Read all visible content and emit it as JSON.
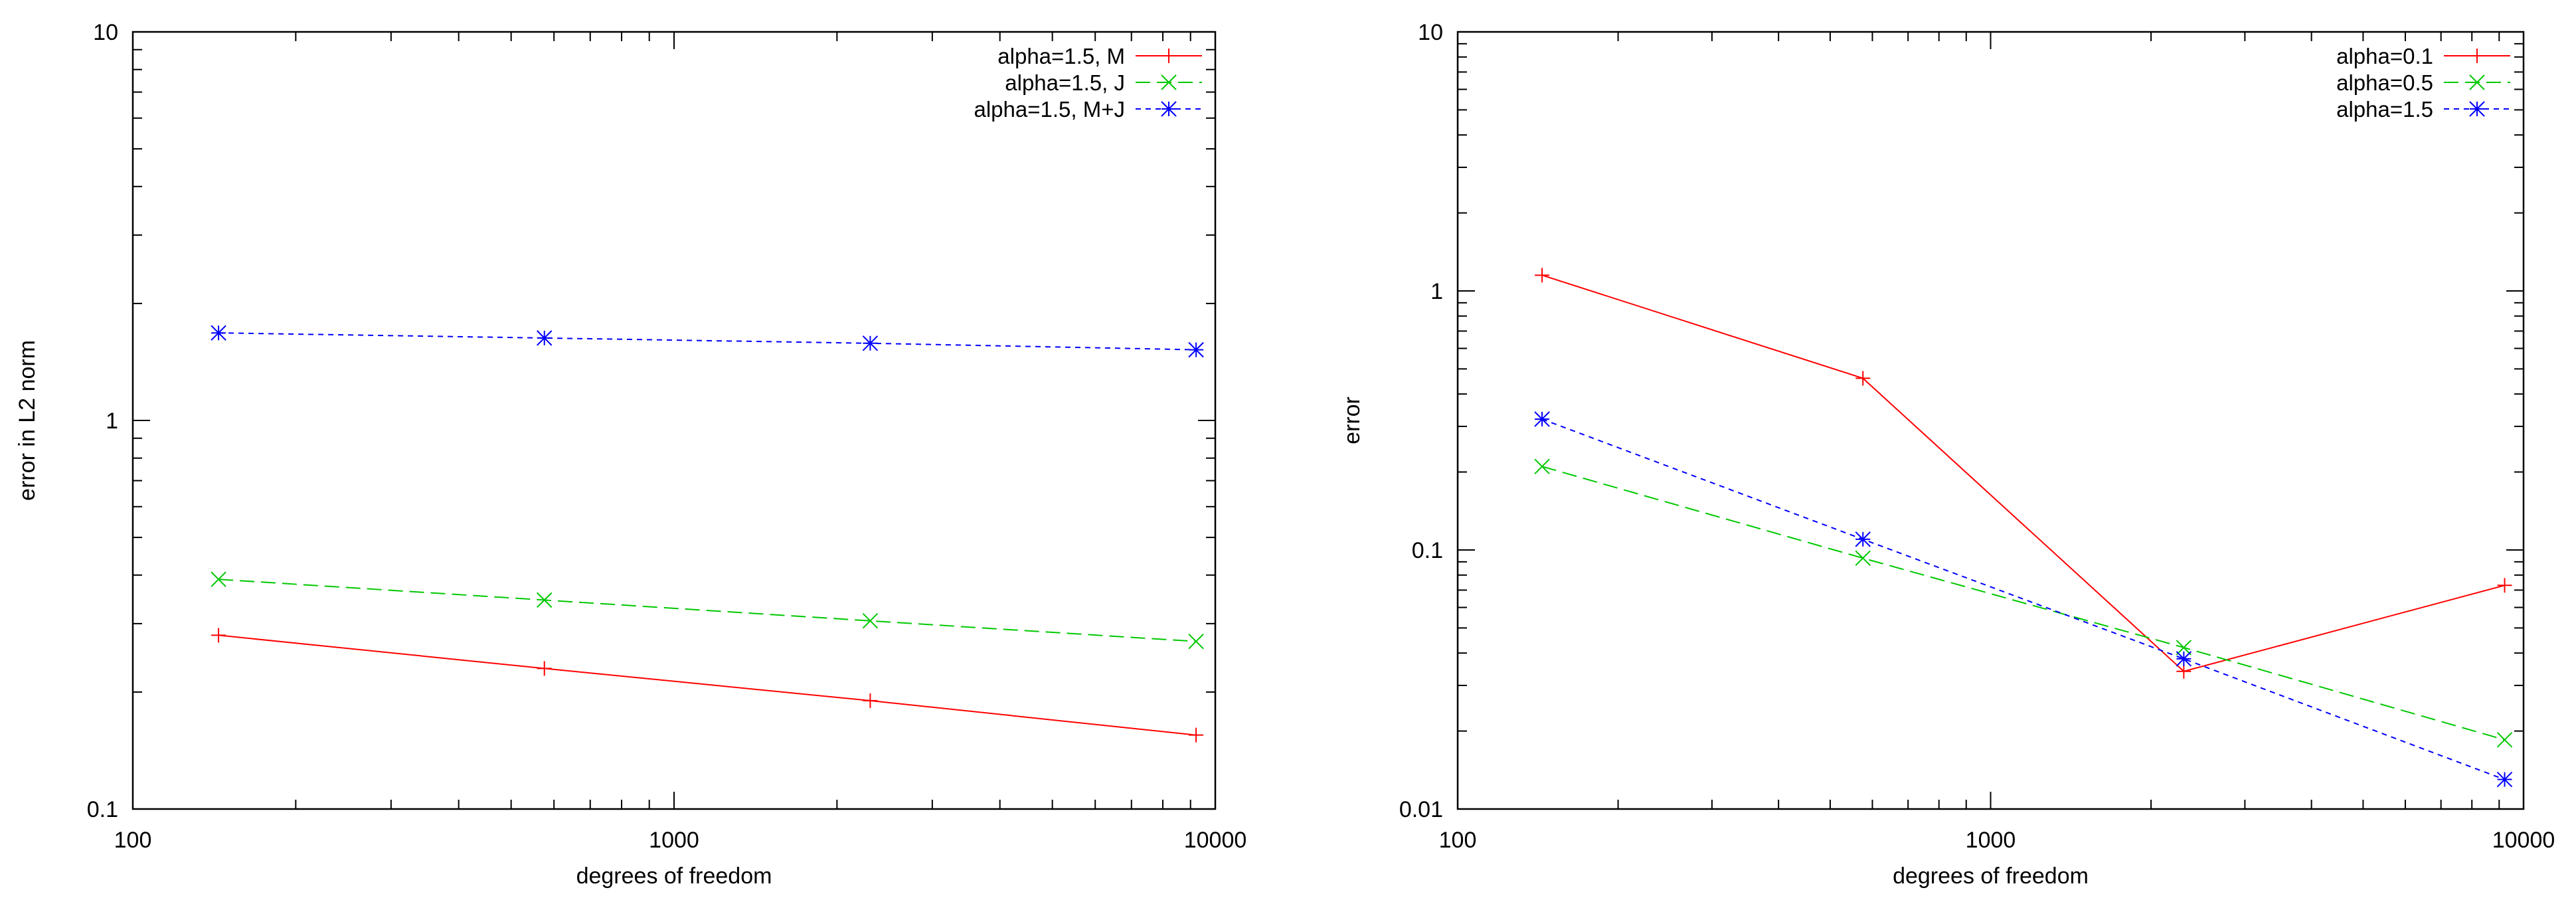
{
  "chart_data": [
    {
      "type": "line",
      "xscale": "log",
      "yscale": "log",
      "xlim": [
        100,
        10000
      ],
      "ylim": [
        0.1,
        10
      ],
      "xlabel": "degrees of freedom",
      "ylabel": "error in L2 norm",
      "xticks": [
        "100",
        "1000",
        "10000"
      ],
      "yticks": [
        "0.1",
        "1",
        "10"
      ],
      "legend_position": "top-right",
      "series": [
        {
          "name": "alpha=1.5, M",
          "color": "#ff0000",
          "marker": "plus",
          "dash": "solid",
          "x": [
            144,
            576,
            2304,
            9216
          ],
          "y": [
            0.28,
            0.23,
            0.19,
            0.155
          ]
        },
        {
          "name": "alpha=1.5, J",
          "color": "#00c800",
          "marker": "cross",
          "dash": "dashed",
          "x": [
            144,
            576,
            2304,
            9216
          ],
          "y": [
            0.39,
            0.345,
            0.305,
            0.27
          ]
        },
        {
          "name": "alpha=1.5, M+J",
          "color": "#0000ff",
          "marker": "asterisk",
          "dash": "dotted",
          "x": [
            144,
            576,
            2304,
            9216
          ],
          "y": [
            1.68,
            1.63,
            1.58,
            1.52
          ]
        }
      ]
    },
    {
      "type": "line",
      "xscale": "log",
      "yscale": "log",
      "xlim": [
        100,
        10000
      ],
      "ylim": [
        0.01,
        10
      ],
      "xlabel": "degrees of freedom",
      "ylabel": "error",
      "xticks": [
        "100",
        "1000",
        "10000"
      ],
      "yticks": [
        "0.01",
        "0.1",
        "1",
        "10"
      ],
      "legend_position": "top-right",
      "series": [
        {
          "name": "alpha=0.1",
          "color": "#ff0000",
          "marker": "plus",
          "dash": "solid",
          "x": [
            144,
            576,
            2304,
            9216
          ],
          "y": [
            1.15,
            0.46,
            0.034,
            0.073
          ]
        },
        {
          "name": "alpha=0.5",
          "color": "#00c800",
          "marker": "cross",
          "dash": "dashed",
          "x": [
            144,
            576,
            2304,
            9216
          ],
          "y": [
            0.21,
            0.093,
            0.042,
            0.0185
          ]
        },
        {
          "name": "alpha=1.5",
          "color": "#0000ff",
          "marker": "asterisk",
          "dash": "dotted",
          "x": [
            144,
            576,
            2304,
            9216
          ],
          "y": [
            0.32,
            0.11,
            0.038,
            0.013
          ]
        }
      ]
    }
  ]
}
